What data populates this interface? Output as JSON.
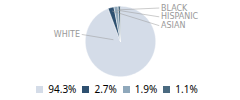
{
  "chart_data": {
    "type": "pie",
    "categories": [
      "WHITE",
      "ASIAN",
      "HISPANIC",
      "BLACK"
    ],
    "values": [
      94.3,
      2.7,
      1.9,
      1.1
    ],
    "value_labels": [
      "94.3%",
      "2.7%",
      "1.9%",
      "1.1%"
    ],
    "colors": [
      "#d4dce8",
      "#2e5070",
      "#8fa8bb",
      "#4a6a80"
    ],
    "legend": "bottom"
  }
}
